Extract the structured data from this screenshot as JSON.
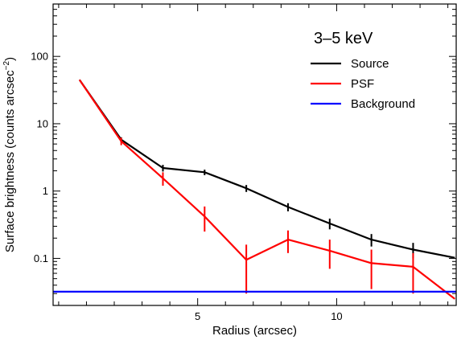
{
  "chart_data": {
    "type": "line",
    "title": "3–5 keV",
    "xlabel": "Radius (arcsec)",
    "ylabel": "Surface brightness (counts arcsec",
    "ylabel_sup": "−2",
    "ylabel_close": ")",
    "xscale": "linear",
    "yscale": "log",
    "xlim": [
      -0.2,
      14.3
    ],
    "ylim": [
      0.02,
      600
    ],
    "x_ticks_major": [
      5,
      10
    ],
    "x_tick_labels": [
      "5",
      "10"
    ],
    "y_ticks_major": [
      0.1,
      1,
      10,
      100
    ],
    "y_tick_labels": [
      "0.1",
      "1",
      "10",
      "100"
    ],
    "legend_position": "top-right",
    "colors": {
      "source": "#000000",
      "psf": "#ff0000",
      "background": "#0000ff"
    },
    "series": [
      {
        "name": "Source",
        "color": "#000000",
        "x": [
          0.75,
          2.25,
          3.75,
          5.25,
          6.75,
          8.25,
          9.75,
          11.25,
          12.75,
          14.25
        ],
        "y": [
          45,
          5.8,
          2.2,
          1.9,
          1.1,
          0.58,
          0.33,
          0.19,
          0.135,
          0.102
        ],
        "err": [
          0,
          0.5,
          0.25,
          0.18,
          0.13,
          0.08,
          0.06,
          0.04,
          0.035,
          0
        ],
        "show_err": [
          false,
          true,
          true,
          true,
          true,
          true,
          true,
          true,
          true,
          false
        ]
      },
      {
        "name": "PSF",
        "color": "#ff0000",
        "x": [
          0.75,
          2.25,
          3.75,
          5.25,
          6.75,
          8.25,
          9.75,
          11.25,
          12.75,
          14.25
        ],
        "y": [
          45,
          5.5,
          1.55,
          0.42,
          0.095,
          0.19,
          0.13,
          0.085,
          0.075,
          0.025
        ],
        "err": [
          0,
          0.7,
          0.35,
          0.17,
          0.065,
          0.07,
          0.06,
          0.05,
          0.045,
          0
        ],
        "show_err": [
          false,
          true,
          true,
          true,
          true,
          true,
          true,
          true,
          true,
          false
        ]
      },
      {
        "name": "Background",
        "color": "#0000ff",
        "x": [
          -0.2,
          14.3
        ],
        "y": [
          0.032,
          0.032
        ]
      }
    ]
  }
}
